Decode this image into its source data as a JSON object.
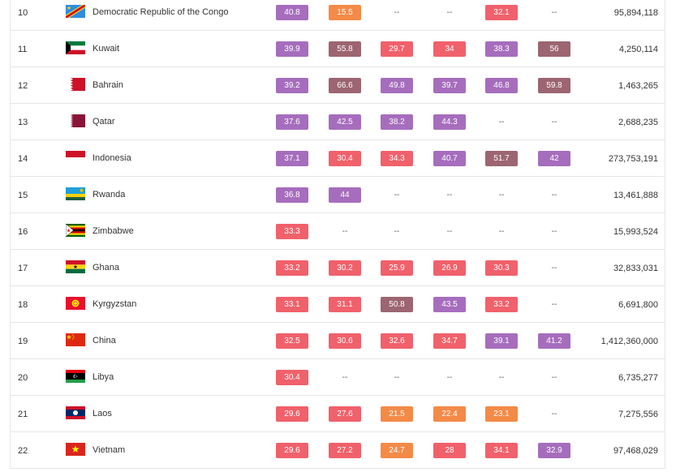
{
  "colors": {
    "purple": "#a66dbd",
    "mauve": "#9c6571",
    "red": "#f0616b",
    "orange": "#f48a47"
  },
  "rows": [
    {
      "rank": "10",
      "country": "Democratic Republic of the Congo",
      "flag": "flag-drc-icon",
      "values": [
        "40.8",
        "15.5",
        "--",
        "--",
        "32.1",
        "--"
      ],
      "colors": [
        "purple",
        "orange",
        "",
        "",
        "red",
        ""
      ],
      "population": "95,894,118"
    },
    {
      "rank": "11",
      "country": "Kuwait",
      "flag": "flag-kuwait-icon",
      "values": [
        "39.9",
        "55.8",
        "29.7",
        "34",
        "38.3",
        "56"
      ],
      "colors": [
        "purple",
        "mauve",
        "red",
        "red",
        "purple",
        "mauve"
      ],
      "population": "4,250,114"
    },
    {
      "rank": "12",
      "country": "Bahrain",
      "flag": "flag-bahrain-icon",
      "values": [
        "39.2",
        "66.6",
        "49.8",
        "39.7",
        "46.8",
        "59.8"
      ],
      "colors": [
        "purple",
        "mauve",
        "purple",
        "purple",
        "purple",
        "mauve"
      ],
      "population": "1,463,265"
    },
    {
      "rank": "13",
      "country": "Qatar",
      "flag": "flag-qatar-icon",
      "values": [
        "37.6",
        "42.5",
        "38.2",
        "44.3",
        "--",
        "--"
      ],
      "colors": [
        "purple",
        "purple",
        "purple",
        "purple",
        "",
        ""
      ],
      "population": "2,688,235"
    },
    {
      "rank": "14",
      "country": "Indonesia",
      "flag": "flag-indonesia-icon",
      "values": [
        "37.1",
        "30.4",
        "34.3",
        "40.7",
        "51.7",
        "42"
      ],
      "colors": [
        "purple",
        "red",
        "red",
        "purple",
        "mauve",
        "purple"
      ],
      "population": "273,753,191"
    },
    {
      "rank": "15",
      "country": "Rwanda",
      "flag": "flag-rwanda-icon",
      "values": [
        "36.8",
        "44",
        "--",
        "--",
        "--",
        "--"
      ],
      "colors": [
        "purple",
        "purple",
        "",
        "",
        "",
        ""
      ],
      "population": "13,461,888"
    },
    {
      "rank": "16",
      "country": "Zimbabwe",
      "flag": "flag-zimbabwe-icon",
      "values": [
        "33.3",
        "--",
        "--",
        "--",
        "--",
        "--"
      ],
      "colors": [
        "red",
        "",
        "",
        "",
        "",
        ""
      ],
      "population": "15,993,524"
    },
    {
      "rank": "17",
      "country": "Ghana",
      "flag": "flag-ghana-icon",
      "values": [
        "33.2",
        "30.2",
        "25.9",
        "26.9",
        "30.3",
        "--"
      ],
      "colors": [
        "red",
        "red",
        "red",
        "red",
        "red",
        ""
      ],
      "population": "32,833,031"
    },
    {
      "rank": "18",
      "country": "Kyrgyzstan",
      "flag": "flag-kyrgyzstan-icon",
      "values": [
        "33.1",
        "31.1",
        "50.8",
        "43.5",
        "33.2",
        "--"
      ],
      "colors": [
        "red",
        "red",
        "mauve",
        "purple",
        "red",
        ""
      ],
      "population": "6,691,800"
    },
    {
      "rank": "19",
      "country": "China",
      "flag": "flag-china-icon",
      "values": [
        "32.5",
        "30.6",
        "32.6",
        "34.7",
        "39.1",
        "41.2"
      ],
      "colors": [
        "red",
        "red",
        "red",
        "red",
        "purple",
        "purple"
      ],
      "population": "1,412,360,000"
    },
    {
      "rank": "20",
      "country": "Libya",
      "flag": "flag-libya-icon",
      "values": [
        "30.4",
        "--",
        "--",
        "--",
        "--",
        "--"
      ],
      "colors": [
        "red",
        "",
        "",
        "",
        "",
        ""
      ],
      "population": "6,735,277"
    },
    {
      "rank": "21",
      "country": "Laos",
      "flag": "flag-laos-icon",
      "values": [
        "29.6",
        "27.6",
        "21.5",
        "22.4",
        "23.1",
        "--"
      ],
      "colors": [
        "red",
        "red",
        "orange",
        "orange",
        "orange",
        ""
      ],
      "population": "7,275,556"
    },
    {
      "rank": "22",
      "country": "Vietnam",
      "flag": "flag-vietnam-icon",
      "values": [
        "29.6",
        "27.2",
        "24.7",
        "28",
        "34.1",
        "32.9"
      ],
      "colors": [
        "red",
        "red",
        "orange",
        "red",
        "red",
        "purple"
      ],
      "population": "97,468,029"
    }
  ]
}
